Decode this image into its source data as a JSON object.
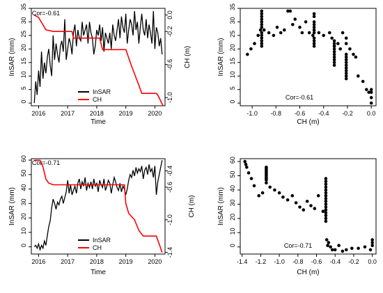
{
  "colors": {
    "insar": "#000000",
    "ch": "#ff0000"
  },
  "chart_data": [
    {
      "type": "line",
      "panel": "top-left",
      "xlabel": "Time",
      "ylabel": "InSAR (mm)",
      "ylabel_right": "CH (m)",
      "xlim": [
        2015.75,
        2020.35
      ],
      "ylim": [
        -1,
        35
      ],
      "ylim_right": [
        -1.1,
        0.08
      ],
      "x_ticks": [
        "2016",
        "2017",
        "2018",
        "2019",
        "2020"
      ],
      "y_ticks": [
        "0",
        "5",
        "10",
        "15",
        "20",
        "25",
        "30",
        "35"
      ],
      "y_ticks_right": [
        "-1.0",
        "-0.6",
        "-0.2",
        "0.0"
      ],
      "annotation": "Cor=-0.61",
      "legend": {
        "position": "bottom-center",
        "entries": [
          "InSAR",
          "CH"
        ]
      },
      "series": [
        {
          "name": "InSAR",
          "color": "#000000",
          "x": [
            2015.85,
            2015.9,
            2015.95,
            2016.0,
            2016.05,
            2016.1,
            2016.15,
            2016.2,
            2016.25,
            2016.3,
            2016.35,
            2016.4,
            2016.45,
            2016.5,
            2016.55,
            2016.6,
            2016.65,
            2016.7,
            2016.75,
            2016.8,
            2016.85,
            2016.9,
            2016.95,
            2017.0,
            2017.05,
            2017.1,
            2017.15,
            2017.2,
            2017.25,
            2017.3,
            2017.35,
            2017.4,
            2017.45,
            2017.5,
            2017.55,
            2017.6,
            2017.65,
            2017.7,
            2017.75,
            2017.8,
            2017.85,
            2017.9,
            2017.95,
            2018.0,
            2018.05,
            2018.1,
            2018.15,
            2018.2,
            2018.25,
            2018.3,
            2018.35,
            2018.4,
            2018.45,
            2018.5,
            2018.55,
            2018.6,
            2018.65,
            2018.7,
            2018.75,
            2018.8,
            2018.85,
            2018.9,
            2018.95,
            2019.0,
            2019.05,
            2019.1,
            2019.15,
            2019.2,
            2019.25,
            2019.3,
            2019.35,
            2019.4,
            2019.45,
            2019.5,
            2019.55,
            2019.6,
            2019.65,
            2019.7,
            2019.75,
            2019.8,
            2019.85,
            2019.9,
            2019.95,
            2020.0,
            2020.05,
            2020.1,
            2020.15,
            2020.2,
            2020.25
          ],
          "y": [
            0,
            8,
            3,
            12,
            6,
            19,
            9,
            15,
            11,
            17,
            20,
            14,
            10,
            25,
            16,
            22,
            18,
            15,
            21,
            23,
            19,
            31,
            16,
            20,
            24,
            22,
            18,
            26,
            29,
            21,
            27,
            24,
            23,
            30,
            25,
            27,
            29,
            22,
            30,
            26,
            24,
            18,
            21,
            27,
            25,
            29,
            23,
            28,
            19,
            26,
            24,
            22,
            26,
            20,
            29,
            25,
            23,
            27,
            31,
            24,
            32,
            28,
            26,
            33,
            22,
            27,
            31,
            29,
            25,
            34,
            27,
            30,
            22,
            28,
            33,
            27,
            25,
            31,
            24,
            29,
            26,
            22,
            34,
            20,
            28,
            26,
            21,
            24,
            18
          ]
        },
        {
          "name": "CH",
          "color": "#ff0000",
          "x": [
            2015.85,
            2016.0,
            2016.25,
            2016.5,
            2016.75,
            2017.0,
            2017.15,
            2017.2,
            2017.4,
            2017.6,
            2017.85,
            2018.0,
            2018.1,
            2018.2,
            2018.4,
            2018.6,
            2018.85,
            2019.0,
            2019.2,
            2019.45,
            2019.55,
            2019.7,
            2019.9,
            2020.05,
            2020.1,
            2020.28
          ],
          "y": [
            0.0,
            -0.03,
            -0.18,
            -0.2,
            -0.2,
            -0.2,
            -0.2,
            -0.28,
            -0.28,
            -0.28,
            -0.28,
            -0.28,
            -0.28,
            -0.42,
            -0.42,
            -0.42,
            -0.42,
            -0.42,
            -0.62,
            -0.85,
            -0.95,
            -0.95,
            -0.95,
            -0.95,
            -0.97,
            -1.1
          ]
        }
      ]
    },
    {
      "type": "scatter",
      "panel": "top-right",
      "xlabel": "CH (m)",
      "ylabel": "InSAR (mm)",
      "xlim": [
        -1.1,
        0.04
      ],
      "ylim": [
        -1,
        35
      ],
      "x_ticks": [
        "-1.0",
        "-0.8",
        "-0.6",
        "-0.4",
        "-0.2",
        "0.0"
      ],
      "y_ticks": [
        "0",
        "5",
        "10",
        "15",
        "20",
        "25",
        "30",
        "35"
      ],
      "annotation": "Cor=-0.61",
      "x": [
        -1.04,
        -1.01,
        -0.98,
        -0.95,
        -0.93,
        -0.92,
        -0.92,
        -0.92,
        -0.92,
        -0.92,
        -0.92,
        -0.92,
        -0.92,
        -0.92,
        -0.92,
        -0.92,
        -0.92,
        -0.92,
        -0.9,
        -0.86,
        -0.82,
        -0.79,
        -0.76,
        -0.73,
        -0.7,
        -0.68,
        -0.66,
        -0.64,
        -0.6,
        -0.58,
        -0.55,
        -0.52,
        -0.49,
        -0.48,
        -0.48,
        -0.48,
        -0.48,
        -0.48,
        -0.48,
        -0.48,
        -0.48,
        -0.48,
        -0.48,
        -0.48,
        -0.44,
        -0.4,
        -0.35,
        -0.33,
        -0.31,
        -0.31,
        -0.31,
        -0.31,
        -0.31,
        -0.31,
        -0.31,
        -0.31,
        -0.31,
        -0.31,
        -0.31,
        -0.28,
        -0.26,
        -0.24,
        -0.21,
        -0.21,
        -0.21,
        -0.21,
        -0.21,
        -0.21,
        -0.21,
        -0.21,
        -0.21,
        -0.21,
        -0.21,
        -0.21,
        -0.18,
        -0.15,
        -0.13,
        -0.11,
        -0.07,
        -0.04,
        -0.02,
        0.0,
        0.0,
        0.0,
        0.0
      ],
      "y": [
        18,
        20,
        22,
        25,
        27,
        21,
        23,
        24,
        26,
        28,
        29,
        30,
        31,
        32,
        33,
        34,
        22,
        25,
        27,
        26,
        25,
        28,
        26,
        27,
        34,
        34,
        29,
        31,
        28,
        26,
        30,
        26,
        25,
        33,
        32,
        30,
        28,
        27,
        26,
        24,
        23,
        22,
        21,
        29,
        26,
        25,
        26,
        24,
        23,
        22,
        21,
        20,
        19,
        18,
        17,
        16,
        15,
        14,
        21,
        22,
        20,
        26,
        24,
        22,
        18,
        17,
        16,
        15,
        14,
        13,
        12,
        11,
        10,
        9,
        20,
        18,
        17,
        10,
        8,
        5,
        4,
        5,
        2,
        0,
        4
      ]
    },
    {
      "type": "line",
      "panel": "bottom-left",
      "xlabel": "Time",
      "ylabel": "InSAR (mm)",
      "ylabel_right": "CH (m)",
      "xlim": [
        2015.75,
        2020.35
      ],
      "ylim": [
        -5,
        61
      ],
      "ylim_right": [
        -1.42,
        -0.25
      ],
      "x_ticks": [
        "2016",
        "2017",
        "2018",
        "2019",
        "2020"
      ],
      "y_ticks": [
        "0",
        "10",
        "20",
        "30",
        "40",
        "50",
        "60"
      ],
      "y_ticks_right": [
        "-1.4",
        "-1.0",
        "-0.6",
        "-0.4"
      ],
      "annotation": "Cor=-0.71",
      "legend": {
        "position": "bottom-center",
        "entries": [
          "InSAR",
          "CH"
        ]
      },
      "series": [
        {
          "name": "InSAR",
          "color": "#000000",
          "x": [
            2015.85,
            2015.9,
            2015.95,
            2016.0,
            2016.05,
            2016.1,
            2016.15,
            2016.2,
            2016.25,
            2016.3,
            2016.35,
            2016.4,
            2016.45,
            2016.5,
            2016.55,
            2016.6,
            2016.65,
            2016.7,
            2016.75,
            2016.8,
            2016.85,
            2016.9,
            2016.95,
            2017.0,
            2017.05,
            2017.1,
            2017.15,
            2017.2,
            2017.25,
            2017.3,
            2017.35,
            2017.4,
            2017.45,
            2017.5,
            2017.55,
            2017.6,
            2017.65,
            2017.7,
            2017.75,
            2017.8,
            2017.85,
            2017.9,
            2017.95,
            2018.0,
            2018.05,
            2018.1,
            2018.15,
            2018.2,
            2018.25,
            2018.3,
            2018.35,
            2018.4,
            2018.45,
            2018.5,
            2018.55,
            2018.6,
            2018.65,
            2018.7,
            2018.75,
            2018.8,
            2018.85,
            2018.9,
            2018.95,
            2019.0,
            2019.05,
            2019.1,
            2019.15,
            2019.2,
            2019.25,
            2019.3,
            2019.35,
            2019.4,
            2019.45,
            2019.5,
            2019.55,
            2019.6,
            2019.65,
            2019.7,
            2019.75,
            2019.8,
            2019.85,
            2019.9,
            2019.95,
            2020.0,
            2020.05,
            2020.1,
            2020.15,
            2020.2,
            2020.25
          ],
          "y": [
            0,
            1,
            -1,
            2,
            -2,
            1,
            -1,
            4,
            1,
            8,
            14,
            18,
            27,
            33,
            30,
            26,
            31,
            29,
            33,
            35,
            30,
            34,
            38,
            46,
            37,
            43,
            36,
            39,
            42,
            37,
            44,
            47,
            40,
            45,
            42,
            48,
            39,
            44,
            41,
            45,
            40,
            47,
            42,
            44,
            38,
            46,
            43,
            41,
            47,
            39,
            42,
            46,
            44,
            37,
            43,
            48,
            45,
            41,
            39,
            44,
            38,
            42,
            40,
            36,
            40,
            46,
            50,
            48,
            53,
            49,
            55,
            51,
            54,
            52,
            56,
            47,
            53,
            55,
            50,
            57,
            52,
            54,
            48,
            56,
            36,
            45,
            50,
            55,
            60
          ]
        },
        {
          "name": "CH",
          "color": "#ff0000",
          "x": [
            2015.85,
            2016.05,
            2016.15,
            2016.25,
            2016.35,
            2016.5,
            2016.75,
            2017.0,
            2017.5,
            2018.0,
            2018.5,
            2018.95,
            2019.0,
            2019.1,
            2019.3,
            2019.45,
            2019.6,
            2019.8,
            2019.95,
            2020.05,
            2020.15,
            2020.25
          ],
          "y": [
            -0.27,
            -0.27,
            -0.35,
            -0.5,
            -0.55,
            -0.57,
            -0.57,
            -0.57,
            -0.57,
            -0.57,
            -0.57,
            -0.57,
            -0.8,
            -0.92,
            -1.0,
            -1.13,
            -1.2,
            -1.2,
            -1.2,
            -1.2,
            -1.3,
            -1.4
          ]
        }
      ]
    },
    {
      "type": "scatter",
      "panel": "bottom-right",
      "xlabel": "CH (m)",
      "ylabel": "InSAR (mm)",
      "xlim": [
        -1.42,
        0.04
      ],
      "ylim": [
        -5,
        62
      ],
      "x_ticks": [
        "-1.4",
        "-1.2",
        "-1.0",
        "-0.8",
        "-0.6",
        "-0.4",
        "-0.2",
        "0.0"
      ],
      "y_ticks": [
        "0",
        "10",
        "20",
        "30",
        "40",
        "50",
        "60"
      ],
      "annotation": "Cor=-0.71",
      "x": [
        -1.37,
        -1.36,
        -1.35,
        -1.33,
        -1.3,
        -1.27,
        -1.22,
        -1.18,
        -1.14,
        -1.14,
        -1.14,
        -1.14,
        -1.14,
        -1.14,
        -1.14,
        -1.14,
        -1.14,
        -1.14,
        -1.14,
        -1.1,
        -1.05,
        -1.0,
        -0.96,
        -0.91,
        -0.86,
        -0.82,
        -0.78,
        -0.74,
        -0.7,
        -0.66,
        -0.62,
        -0.58,
        -0.53,
        -0.5,
        -0.5,
        -0.5,
        -0.5,
        -0.5,
        -0.5,
        -0.5,
        -0.5,
        -0.5,
        -0.5,
        -0.5,
        -0.5,
        -0.5,
        -0.5,
        -0.5,
        -0.5,
        -0.49,
        -0.48,
        -0.47,
        -0.45,
        -0.43,
        -0.4,
        -0.36,
        -0.32,
        -0.28,
        -0.22,
        -0.15,
        -0.08,
        -0.02,
        0.0,
        0.0,
        0.0
      ],
      "y": [
        60,
        58,
        56,
        52,
        48,
        43,
        36,
        38,
        56,
        55,
        54,
        53,
        52,
        51,
        50,
        49,
        48,
        47,
        45,
        42,
        40,
        38,
        35,
        33,
        36,
        31,
        28,
        26,
        32,
        29,
        27,
        36,
        25,
        48,
        46,
        44,
        42,
        40,
        38,
        36,
        34,
        32,
        30,
        28,
        26,
        24,
        22,
        20,
        18,
        5,
        1,
        3,
        0,
        -2,
        -2,
        1,
        -3,
        -2,
        -1,
        -1,
        0,
        -2,
        1,
        3,
        5
      ]
    }
  ]
}
